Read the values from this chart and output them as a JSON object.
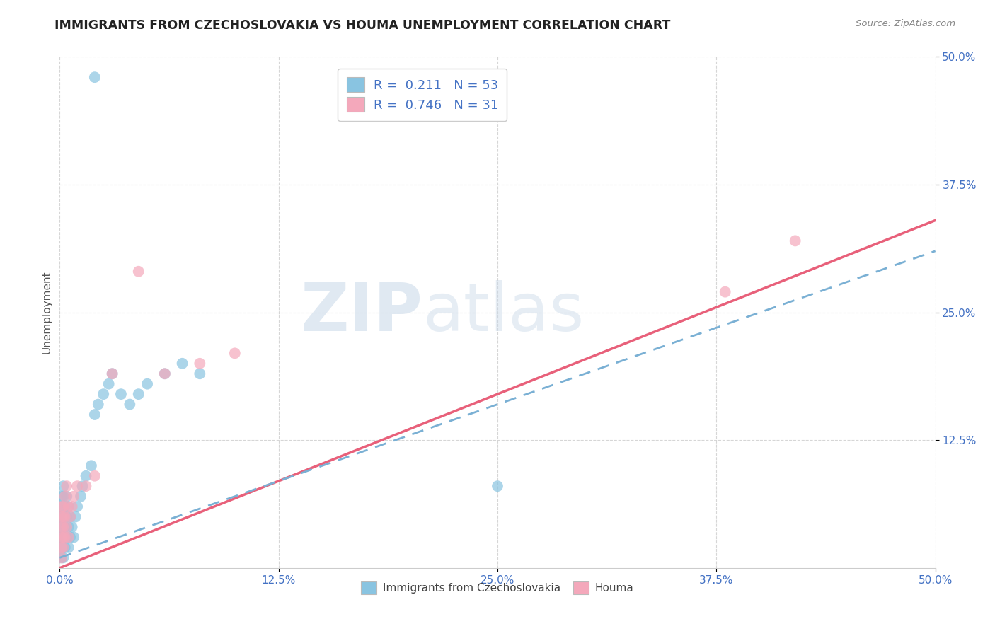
{
  "title": "IMMIGRANTS FROM CZECHOSLOVAKIA VS HOUMA UNEMPLOYMENT CORRELATION CHART",
  "source": "Source: ZipAtlas.com",
  "ylabel": "Unemployment",
  "xlim": [
    0,
    0.5
  ],
  "ylim": [
    0,
    0.5
  ],
  "xtick_labels": [
    "0.0%",
    "12.5%",
    "25.0%",
    "37.5%",
    "50.0%"
  ],
  "xtick_vals": [
    0,
    0.125,
    0.25,
    0.375,
    0.5
  ],
  "ytick_labels": [
    "12.5%",
    "25.0%",
    "37.5%",
    "50.0%"
  ],
  "ytick_vals": [
    0.125,
    0.25,
    0.375,
    0.5
  ],
  "series1_label": "Immigrants from Czechoslovakia",
  "series1_R": 0.211,
  "series1_N": 53,
  "series1_color": "#89c4e1",
  "series2_label": "Houma",
  "series2_R": 0.746,
  "series2_N": 31,
  "series2_color": "#f4a8bb",
  "background_color": "#ffffff",
  "watermark_zip": "ZIP",
  "watermark_atlas": "atlas",
  "blue_scatter_x": [
    0.001,
    0.001,
    0.001,
    0.001,
    0.001,
    0.001,
    0.001,
    0.001,
    0.001,
    0.001,
    0.002,
    0.002,
    0.002,
    0.002,
    0.002,
    0.002,
    0.002,
    0.002,
    0.003,
    0.003,
    0.003,
    0.003,
    0.003,
    0.004,
    0.004,
    0.004,
    0.005,
    0.005,
    0.005,
    0.006,
    0.006,
    0.007,
    0.008,
    0.009,
    0.01,
    0.012,
    0.013,
    0.015,
    0.018,
    0.02,
    0.022,
    0.025,
    0.028,
    0.03,
    0.035,
    0.04,
    0.045,
    0.05,
    0.06,
    0.07,
    0.08,
    0.02,
    0.25
  ],
  "blue_scatter_y": [
    0.01,
    0.02,
    0.02,
    0.03,
    0.03,
    0.04,
    0.04,
    0.05,
    0.06,
    0.07,
    0.01,
    0.02,
    0.03,
    0.04,
    0.05,
    0.06,
    0.07,
    0.08,
    0.02,
    0.03,
    0.04,
    0.05,
    0.06,
    0.03,
    0.05,
    0.07,
    0.02,
    0.04,
    0.06,
    0.03,
    0.05,
    0.04,
    0.03,
    0.05,
    0.06,
    0.07,
    0.08,
    0.09,
    0.1,
    0.15,
    0.16,
    0.17,
    0.18,
    0.19,
    0.17,
    0.16,
    0.17,
    0.18,
    0.19,
    0.2,
    0.19,
    0.48,
    0.08
  ],
  "pink_scatter_x": [
    0.001,
    0.001,
    0.001,
    0.001,
    0.001,
    0.001,
    0.002,
    0.002,
    0.002,
    0.002,
    0.002,
    0.003,
    0.003,
    0.003,
    0.004,
    0.004,
    0.005,
    0.005,
    0.006,
    0.007,
    0.008,
    0.01,
    0.015,
    0.02,
    0.03,
    0.06,
    0.08,
    0.1,
    0.38,
    0.42,
    0.045
  ],
  "pink_scatter_y": [
    0.01,
    0.02,
    0.03,
    0.04,
    0.05,
    0.06,
    0.02,
    0.03,
    0.04,
    0.05,
    0.06,
    0.03,
    0.05,
    0.07,
    0.04,
    0.08,
    0.03,
    0.06,
    0.05,
    0.06,
    0.07,
    0.08,
    0.08,
    0.09,
    0.19,
    0.19,
    0.2,
    0.21,
    0.27,
    0.32,
    0.29
  ],
  "blue_reg_slope": 0.6,
  "blue_reg_intercept": 0.01,
  "pink_reg_slope": 0.68,
  "pink_reg_intercept": 0.0,
  "title_fontsize": 12.5,
  "axis_label_fontsize": 11,
  "tick_fontsize": 11,
  "legend_fontsize": 13
}
